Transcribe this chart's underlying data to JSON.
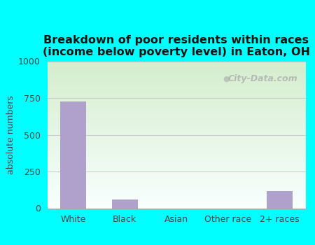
{
  "categories": [
    "White",
    "Black",
    "Asian",
    "Other race",
    "2+ races"
  ],
  "values": [
    725,
    60,
    0,
    0,
    115
  ],
  "bar_color": "#b0a0cc",
  "title_line1": "Breakdown of poor residents within races",
  "title_line2": "(income below poverty level) in Eaton, OH",
  "ylabel": "absolute numbers",
  "ylim": [
    0,
    1000
  ],
  "yticks": [
    0,
    250,
    500,
    750,
    1000
  ],
  "background_color": "#00ffff",
  "plot_bg_top": "#f8fffe",
  "plot_bg_bottom": "#d4edcc",
  "grid_color": "#cccccc",
  "watermark": "City-Data.com",
  "title_fontsize": 11.5,
  "ylabel_fontsize": 9,
  "tick_fontsize": 9,
  "xtick_fontsize": 9
}
